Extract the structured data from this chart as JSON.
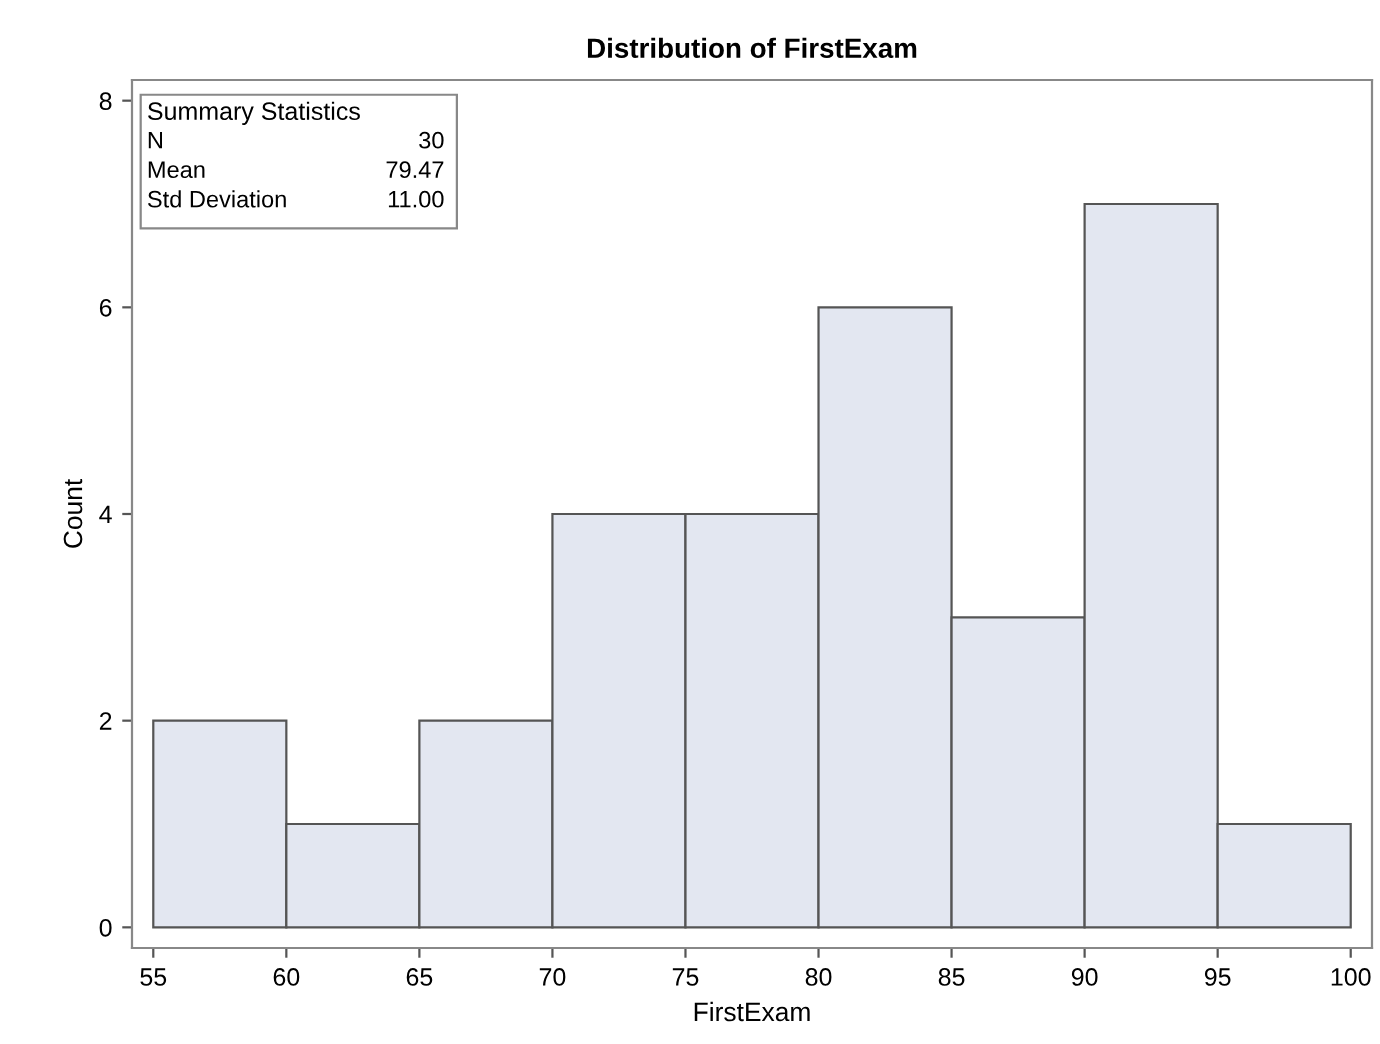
{
  "chart_data": {
    "type": "histogram",
    "title": "Distribution of FirstExam",
    "xlabel": "FirstExam",
    "ylabel": "Count",
    "bins": [
      55,
      60,
      65,
      70,
      75,
      80,
      85,
      90,
      95,
      100
    ],
    "values": [
      2,
      1,
      2,
      4,
      4,
      6,
      3,
      7,
      1
    ],
    "color": "#e3e7f1",
    "xlim": [
      54.2,
      100.8
    ],
    "xticks": [
      55,
      60,
      65,
      70,
      75,
      80,
      85,
      90,
      95,
      100
    ],
    "ylim": [
      -0.2,
      8.2
    ],
    "yticks": [
      0,
      2,
      4,
      6,
      8
    ],
    "grid": false,
    "legend": false,
    "annotations": [
      "Summary Statistics",
      "N",
      "30",
      "Mean",
      "79.47",
      "Std Deviation",
      "11.00"
    ]
  }
}
